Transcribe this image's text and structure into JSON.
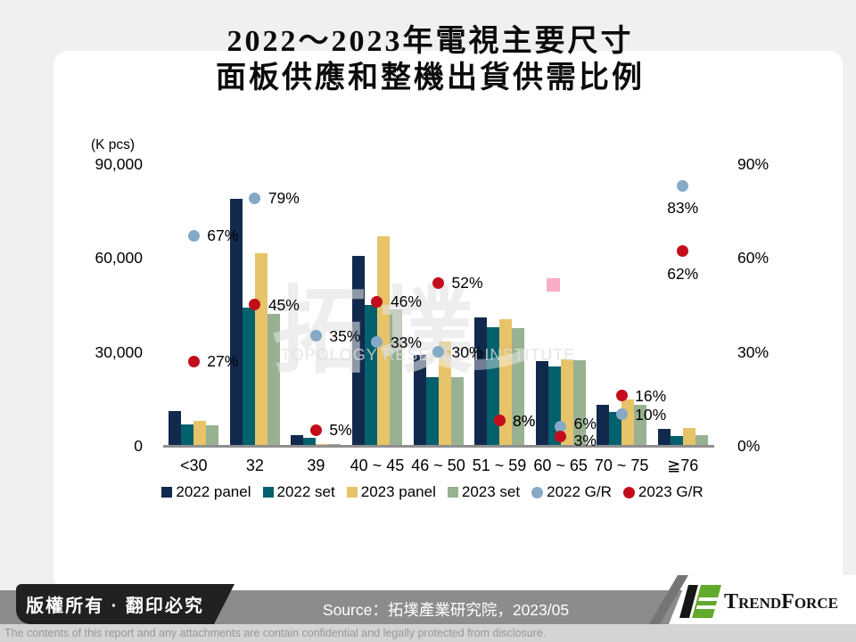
{
  "title": {
    "line1": "2022～2023年電視主要尺寸",
    "line2": "面板供應和整機出貨供需比例"
  },
  "chart_data": {
    "type": "bar",
    "unit_label": "(K pcs)",
    "categories": [
      "<30",
      "32",
      "39",
      "40 ~ 45",
      "46 ~ 50",
      "51 ~ 59",
      "60 ~ 65",
      "70 ~ 75",
      "≧76"
    ],
    "left_axis": {
      "ticks": [
        "90,000",
        "60,000",
        "30,000",
        "0"
      ],
      "max": 90000,
      "label": "(K pcs)"
    },
    "right_axis": {
      "ticks": [
        "90%",
        "60%",
        "30%",
        "0%"
      ],
      "max": 90
    },
    "series": [
      {
        "name": "2022 panel",
        "type": "bar",
        "color": "#12294e",
        "values": [
          11200,
          78800,
          3500,
          60500,
          29000,
          41000,
          27000,
          13000,
          5300
        ]
      },
      {
        "name": "2022 set",
        "type": "bar",
        "color": "#03616d",
        "values": [
          6700,
          44000,
          2500,
          45000,
          21800,
          37900,
          25200,
          10700,
          3000
        ]
      },
      {
        "name": "2023 panel",
        "type": "bar",
        "color": "#e7c369",
        "values": [
          8100,
          61400,
          700,
          66700,
          33200,
          40500,
          27600,
          14800,
          5700
        ]
      },
      {
        "name": "2023 set",
        "type": "bar",
        "color": "#98b191",
        "values": [
          6500,
          42000,
          700,
          43500,
          21800,
          37600,
          27200,
          13000,
          3500
        ]
      },
      {
        "name": "2022 G/R",
        "type": "point",
        "color": "#85aac7",
        "values": [
          67,
          79,
          35,
          33,
          30,
          8,
          6,
          10,
          83
        ]
      },
      {
        "name": "2023 G/R",
        "type": "point",
        "color": "#c30d1a",
        "values": [
          27,
          45,
          5,
          46,
          52,
          8,
          3,
          16,
          62
        ]
      }
    ],
    "annotation": {
      "pink_square": {
        "x": 613,
        "y": 312,
        "size": 15,
        "color": "#f9aec5"
      }
    }
  },
  "watermark": {
    "text": "拓墣",
    "subtext": "TOPOLOGY RESEARCH INSTITUTE"
  },
  "footer": {
    "copyright": "版權所有 · 翻印必究",
    "source": "Source：拓墣產業研究院，2023/05",
    "brand": "TrendForce",
    "disclaimer": "The contents of this report and any attachments are contain confidential and legally protected from disclosure."
  }
}
